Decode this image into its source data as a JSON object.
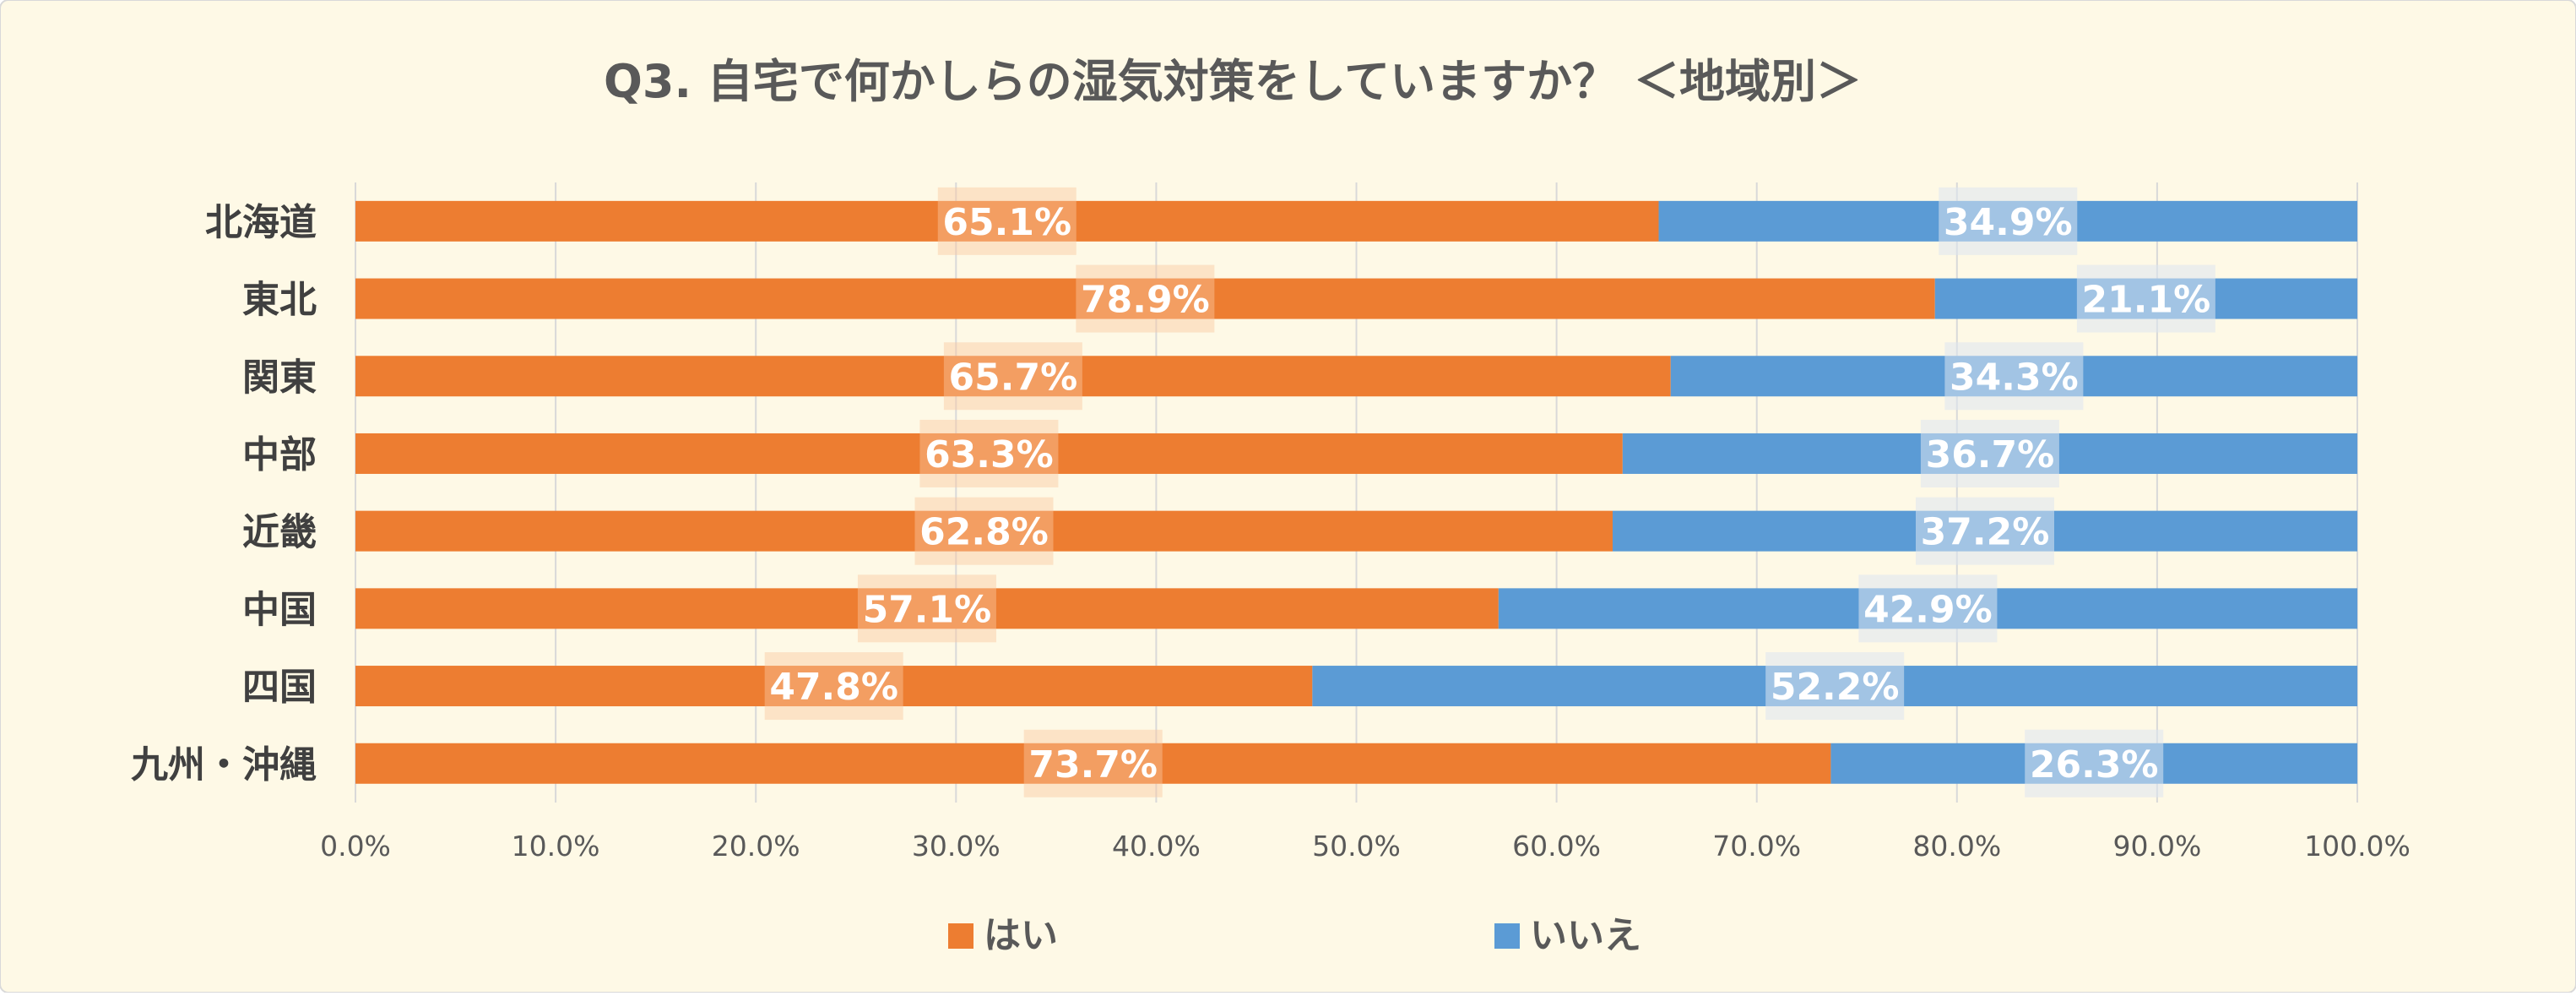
{
  "chart_data": {
    "type": "bar",
    "orientation": "horizontal",
    "stacked": "percent",
    "title": "Q3. 自宅で何かしらの湿気対策をしていますか？ ＜地域別＞",
    "categories": [
      "北海道",
      "東北",
      "関東",
      "中部",
      "近畿",
      "中国",
      "四国",
      "九州・沖縄"
    ],
    "series": [
      {
        "name": "はい",
        "color": "#ED7D31",
        "values": [
          65.1,
          78.9,
          65.7,
          63.3,
          62.8,
          57.1,
          47.8,
          73.7
        ],
        "labels": [
          "65.1%",
          "78.9%",
          "65.7%",
          "63.3%",
          "62.8%",
          "57.1%",
          "47.8%",
          "73.7%"
        ]
      },
      {
        "name": "いいえ",
        "color": "#5B9BD5",
        "values": [
          34.9,
          21.1,
          34.3,
          36.7,
          37.2,
          42.9,
          52.2,
          26.3
        ],
        "labels": [
          "34.9%",
          "21.1%",
          "34.3%",
          "36.7%",
          "37.2%",
          "42.9%",
          "52.2%",
          "26.3%"
        ]
      }
    ],
    "xlim": [
      0,
      100
    ],
    "xticks": [
      0,
      10,
      20,
      30,
      40,
      50,
      60,
      70,
      80,
      90,
      100
    ],
    "xtick_labels": [
      "0.0%",
      "10.0%",
      "20.0%",
      "30.0%",
      "40.0%",
      "50.0%",
      "60.0%",
      "70.0%",
      "80.0%",
      "90.0%",
      "100.0%"
    ],
    "grid": true,
    "legend_position": "bottom"
  },
  "colors": {
    "background": "#FEF9E6",
    "grid": "#D9D9D9",
    "text": "#595959",
    "axis_text": "#404040"
  }
}
